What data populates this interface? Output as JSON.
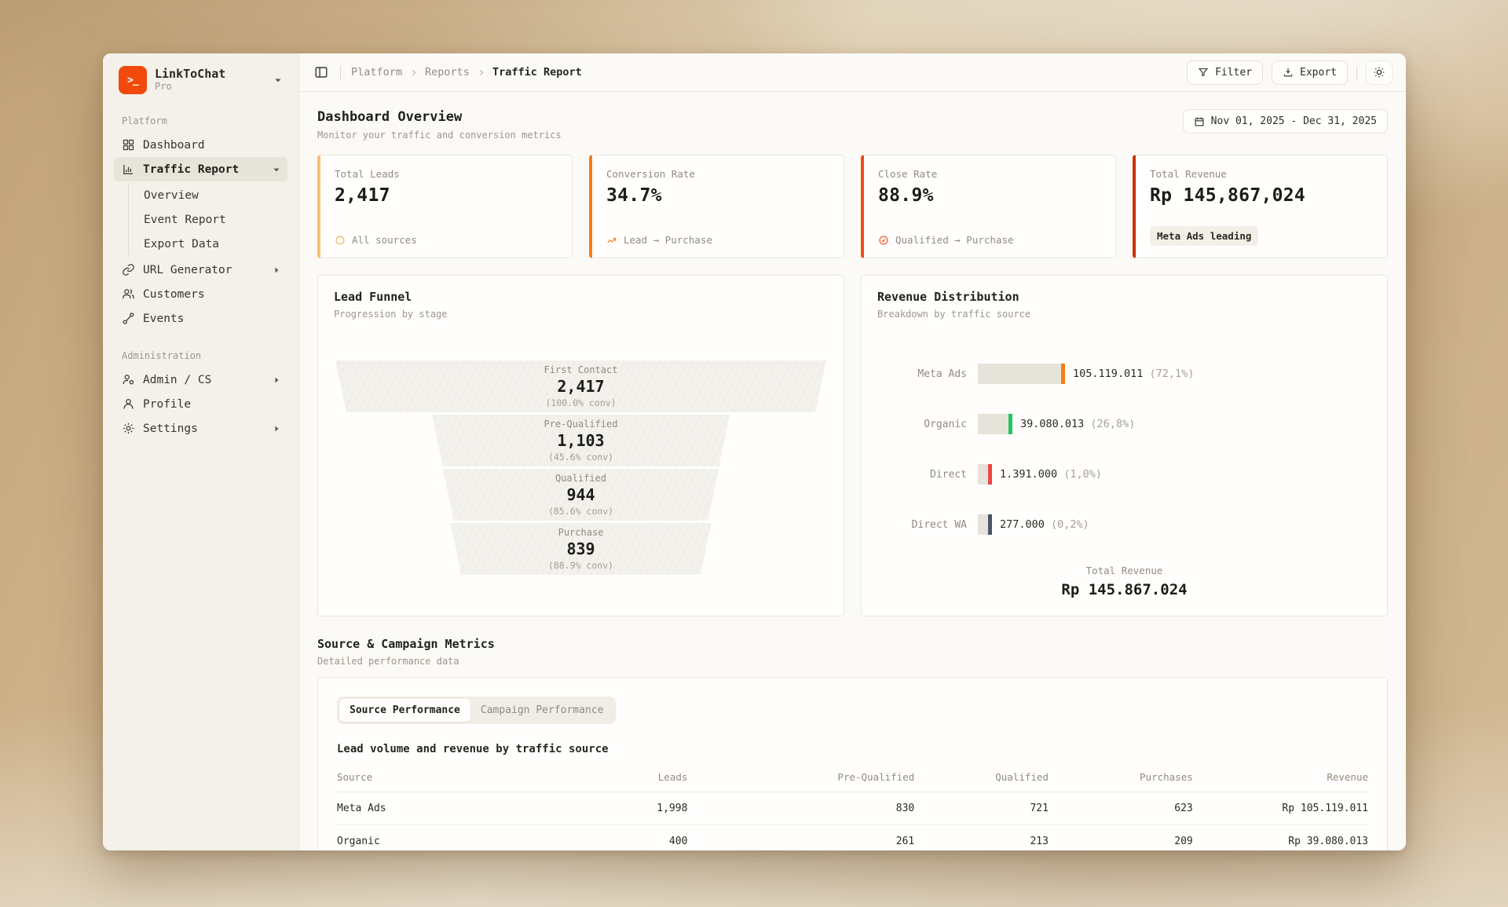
{
  "brand": {
    "name": "LinkToChat",
    "plan": "Pro",
    "logo_glyph": ">_",
    "logo_color": "#f24a0d"
  },
  "sidebar": {
    "groups": [
      {
        "label": "Platform",
        "items": [
          {
            "label": "Dashboard"
          },
          {
            "label": "Traffic Report"
          },
          {
            "label": "URL Generator"
          },
          {
            "label": "Customers"
          },
          {
            "label": "Events"
          }
        ],
        "traffic_children": [
          {
            "label": "Overview"
          },
          {
            "label": "Event Report"
          },
          {
            "label": "Export Data"
          }
        ]
      },
      {
        "label": "Administration",
        "items": [
          {
            "label": "Admin / CS"
          },
          {
            "label": "Profile"
          },
          {
            "label": "Settings"
          }
        ]
      }
    ]
  },
  "header": {
    "breadcrumb": {
      "0": "Platform",
      "1": "Reports",
      "2": "Traffic Report"
    },
    "filter_label": "Filter",
    "export_label": "Export"
  },
  "overview": {
    "title": "Dashboard Overview",
    "subtitle": "Monitor your traffic and conversion metrics",
    "date_range": "Nov 01, 2025 - Dec 31, 2025"
  },
  "metrics": [
    {
      "label": "Total Leads",
      "value": "2,417",
      "footer": "All sources",
      "accent": "#fbbd73",
      "footer_icon": "circle-icon",
      "footer_icon_color": "#f3ad62"
    },
    {
      "label": "Conversion Rate",
      "value": "34.7%",
      "footer": "Lead → Purchase",
      "accent": "#f97c16",
      "footer_icon": "trending-up-icon",
      "footer_icon_color": "#f97c16"
    },
    {
      "label": "Close Rate",
      "value": "88.9%",
      "footer": "Qualified → Purchase",
      "accent": "#ef4a1d",
      "footer_icon": "check-circle-icon",
      "footer_icon_color": "#ef4a1d"
    },
    {
      "label": "Total Revenue",
      "value": "Rp 145,867,024",
      "badge": "Meta Ads leading",
      "accent": "#cb3305"
    }
  ],
  "funnel": {
    "title": "Lead Funnel",
    "subtitle": "Progression by stage",
    "stages": [
      {
        "label": "First Contact",
        "value": "2,417",
        "conv": "(100.0% conv)",
        "width_pct": 100
      },
      {
        "label": "Pre-Qualified",
        "value": "1,103",
        "conv": "(45.6% conv)",
        "width_pct": 61
      },
      {
        "label": "Qualified",
        "value": "944",
        "conv": "(85.6% conv)",
        "width_pct": 56.5
      },
      {
        "label": "Purchase",
        "value": "839",
        "conv": "(88.9% conv)",
        "width_pct": 53.5
      }
    ]
  },
  "revenue": {
    "title": "Revenue Distribution",
    "subtitle": "Breakdown by traffic source",
    "bars": [
      {
        "label": "Meta Ads",
        "value": "105.119.011",
        "pct_label": "(72,1%)",
        "pct": 72.1,
        "color": "#f97c16"
      },
      {
        "label": "Organic",
        "value": "39.080.013",
        "pct_label": "(26,8%)",
        "pct": 26.8,
        "color": "#22c55e"
      },
      {
        "label": "Direct",
        "value": "1.391.000",
        "pct_label": "(1,0%)",
        "pct": 1.0,
        "color": "#ef4444"
      },
      {
        "label": "Direct WA",
        "value": "277.000",
        "pct_label": "(0,2%)",
        "pct": 0.2,
        "color": "#4a5568"
      }
    ],
    "total_label": "Total Revenue",
    "total_value": "Rp 145.867.024"
  },
  "source_metrics": {
    "title": "Source & Campaign Metrics",
    "subtitle": "Detailed performance data",
    "tabs": [
      {
        "label": "Source Performance"
      },
      {
        "label": "Campaign Performance"
      }
    ],
    "table_title": "Lead volume and revenue by traffic source",
    "columns": [
      "Source",
      "Leads",
      "Pre-Qualified",
      "Qualified",
      "Purchases",
      "Revenue"
    ],
    "rows": [
      [
        "Meta Ads",
        "1,998",
        "830",
        "721",
        "623",
        "Rp 105.119.011"
      ],
      [
        "Organic",
        "400",
        "261",
        "213",
        "209",
        "Rp 39.080.013"
      ]
    ]
  },
  "chart_data": [
    {
      "type": "funnel",
      "title": "Lead Funnel",
      "categories": [
        "First Contact",
        "Pre-Qualified",
        "Qualified",
        "Purchase"
      ],
      "values": [
        2417,
        1103,
        944,
        839
      ],
      "conversion_pct": [
        100.0,
        45.6,
        85.6,
        88.9
      ]
    },
    {
      "type": "bar",
      "title": "Revenue Distribution",
      "categories": [
        "Meta Ads",
        "Organic",
        "Direct",
        "Direct WA"
      ],
      "values": [
        105119011,
        39080013,
        1391000,
        277000
      ],
      "share_pct": [
        72.1,
        26.8,
        1.0,
        0.2
      ],
      "total": 145867024,
      "orientation": "horizontal"
    }
  ]
}
